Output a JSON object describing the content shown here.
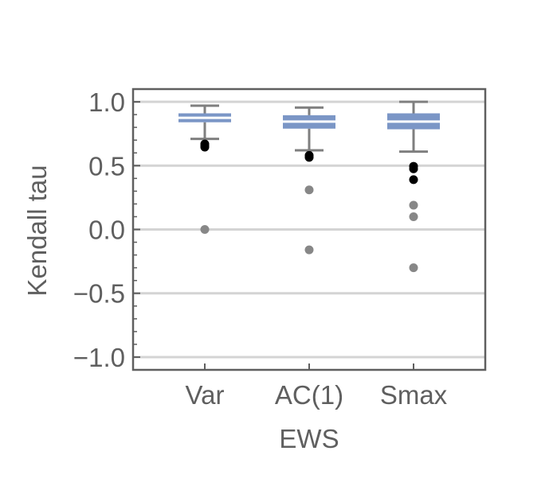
{
  "chart_data": {
    "type": "box",
    "xlabel": "EWS",
    "ylabel": "Kendall tau",
    "ylim": [
      -1.1,
      1.1
    ],
    "y_ticks": [
      {
        "value": 1.0,
        "label": "1.0"
      },
      {
        "value": 0.5,
        "label": "0.5"
      },
      {
        "value": 0.0,
        "label": "0.0"
      },
      {
        "value": -0.5,
        "label": "−0.5"
      },
      {
        "value": -1.0,
        "label": "−1.0"
      }
    ],
    "grid": true,
    "colors": {
      "box": "#7b96c6",
      "whisker": "#7f7f7f",
      "grid": "#d4d4d4",
      "outlier": "#878787",
      "far_outlier": "#000000",
      "frame": "#5f5f5f"
    },
    "categories": [
      "Var",
      "AC(1)",
      "Smax"
    ],
    "boxes": [
      {
        "category": "Var",
        "q1": 0.84,
        "median": 0.875,
        "q3": 0.91,
        "whisker_low": 0.71,
        "whisker_high": 0.97,
        "near_outliers": [
          0.0
        ],
        "far_outliers": [
          0.67,
          0.655,
          0.645
        ]
      },
      {
        "category": "AC(1)",
        "q1": 0.79,
        "median": 0.845,
        "q3": 0.895,
        "whisker_low": 0.62,
        "whisker_high": 0.955,
        "near_outliers": [
          0.31,
          -0.16
        ],
        "far_outliers": [
          0.58,
          0.565
        ]
      },
      {
        "category": "Smax",
        "q1": 0.785,
        "median": 0.845,
        "q3": 0.91,
        "whisker_low": 0.61,
        "whisker_high": 1.0,
        "near_outliers": [
          0.19,
          0.1,
          -0.3
        ],
        "far_outliers": [
          0.495,
          0.475,
          0.39
        ]
      }
    ]
  }
}
